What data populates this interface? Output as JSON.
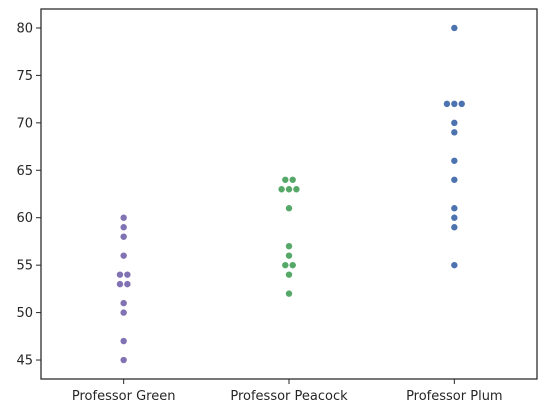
{
  "chart_data": {
    "type": "scatter",
    "style": "swarm",
    "categories": [
      "Professor Green",
      "Professor Peacock",
      "Professor Plum"
    ],
    "ylim": [
      43,
      82
    ],
    "yticks": [
      45,
      50,
      55,
      60,
      65,
      70,
      75,
      80
    ],
    "grid": false,
    "series": [
      {
        "category": "Professor Green",
        "color": "#8172b3",
        "values": [
          60,
          59,
          58,
          56,
          54,
          54,
          53,
          53,
          51,
          50,
          47,
          45
        ]
      },
      {
        "category": "Professor Peacock",
        "color": "#55a868",
        "values": [
          64,
          64,
          63,
          63,
          63,
          61,
          57,
          56,
          55,
          55,
          54,
          52
        ]
      },
      {
        "category": "Professor Plum",
        "color": "#4c72b0",
        "values": [
          80,
          72,
          72,
          72,
          70,
          69,
          66,
          64,
          61,
          60,
          59,
          55
        ]
      }
    ],
    "xlabel": "",
    "ylabel": ""
  }
}
